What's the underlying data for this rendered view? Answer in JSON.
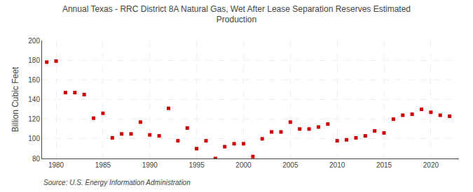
{
  "chart_data": {
    "type": "scatter",
    "title": "Annual Texas - RRC District 8A Natural Gas, Wet After Lease Separation Reserves Estimated\nProduction",
    "ylabel": "Billion Cubic Feet",
    "annotations": [
      "Source: U.S. Energy Information Administration"
    ],
    "x": [
      1979,
      1980,
      1981,
      1982,
      1983,
      1984,
      1985,
      1986,
      1987,
      1988,
      1989,
      1990,
      1991,
      1992,
      1993,
      1994,
      1995,
      1996,
      1997,
      1998,
      1999,
      2000,
      2001,
      2002,
      2003,
      2004,
      2005,
      2006,
      2007,
      2008,
      2009,
      2010,
      2011,
      2012,
      2013,
      2014,
      2015,
      2016,
      2017,
      2018,
      2019,
      2020,
      2021,
      2022
    ],
    "values": [
      178,
      179,
      147,
      147,
      145,
      121,
      126,
      101,
      105,
      105,
      117,
      104,
      103,
      131,
      98,
      111,
      90,
      98,
      80,
      92,
      95,
      95,
      82,
      100,
      107,
      107,
      117,
      110,
      110,
      112,
      115,
      98,
      99,
      101,
      103,
      108,
      106,
      120,
      124,
      125,
      130,
      127,
      124,
      123
    ],
    "color": "#cc0000",
    "marker": "square",
    "xlim": [
      1978.5,
      2023
    ],
    "xticks": [
      1980,
      1985,
      1990,
      1995,
      2000,
      2005,
      2010,
      2015,
      2020
    ],
    "ylim": [
      80,
      200
    ],
    "yticks": [
      80,
      100,
      120,
      140,
      160,
      180,
      200
    ],
    "grid": true
  }
}
